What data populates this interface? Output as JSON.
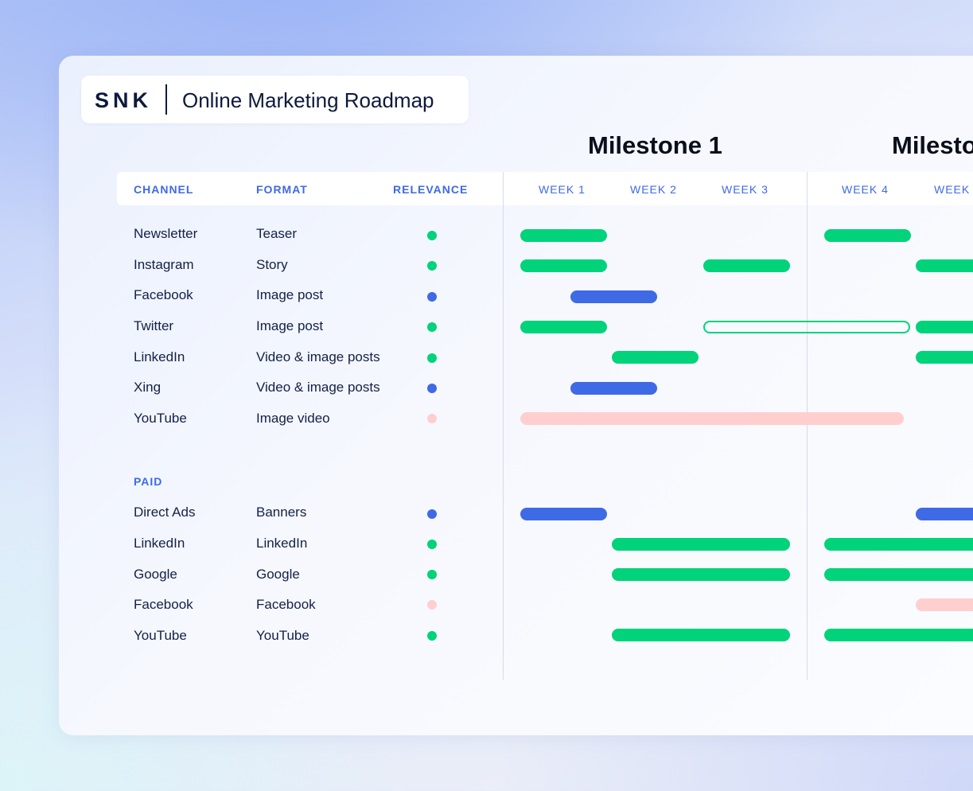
{
  "header": {
    "logo": "SNK",
    "title": "Online Marketing Roadmap"
  },
  "milestones": [
    "Milestone 1",
    "Milesto"
  ],
  "columns": {
    "channel": "CHANNEL",
    "format": "FORMAT",
    "relevance": "RELEVANCE"
  },
  "weeks": [
    "WEEK 1",
    "WEEK 2",
    "WEEK 3",
    "WEEK 4",
    "WEEK"
  ],
  "colors": {
    "high": "#00d37a",
    "medium": "#3f6ae6",
    "low": "#ffcfcf"
  },
  "organic_rows": [
    {
      "channel": "Newsletter",
      "format": "Teaser",
      "relevance": "high"
    },
    {
      "channel": "Instagram",
      "format": "Story",
      "relevance": "high"
    },
    {
      "channel": "Facebook",
      "format": "Image post",
      "relevance": "medium"
    },
    {
      "channel": "Twitter",
      "format": "Image post",
      "relevance": "high"
    },
    {
      "channel": "LinkedIn",
      "format": "Video & image posts",
      "relevance": "high"
    },
    {
      "channel": "Xing",
      "format": "Video & image posts",
      "relevance": "medium"
    },
    {
      "channel": "YouTube",
      "format": "Image video",
      "relevance": "low"
    }
  ],
  "paid_section": {
    "label": "PAID",
    "rows": [
      {
        "channel": "Direct Ads",
        "format": "Banners",
        "relevance": "medium"
      },
      {
        "channel": "LinkedIn",
        "format": "LinkedIn",
        "relevance": "high"
      },
      {
        "channel": "Google",
        "format": "Google",
        "relevance": "high"
      },
      {
        "channel": "Facebook",
        "format": "Facebook",
        "relevance": "low"
      },
      {
        "channel": "YouTube",
        "format": "YouTube",
        "relevance": "high"
      }
    ]
  }
}
